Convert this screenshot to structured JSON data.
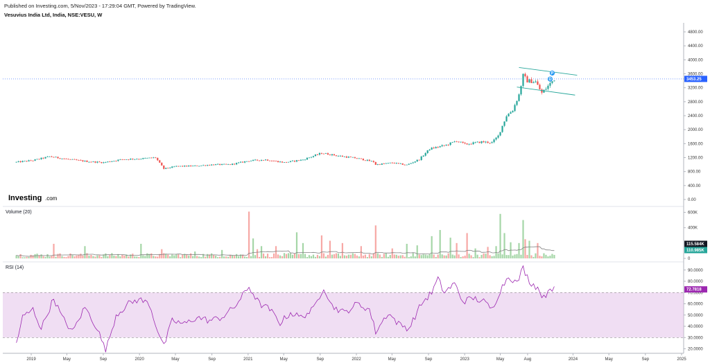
{
  "header": {
    "published": "Published on Investing.com, 5/Nov/2023 - 17:29:04 GMT, Powered by TradingView.",
    "symbol": "Vesuvius India Ltd, India, NSE:VESU, W"
  },
  "logo": {
    "text": "Investing",
    "suffix": ".com"
  },
  "chart_data": [
    {
      "type": "candlestick",
      "title": "Vesuvius India Ltd, India, NSE:VESU, W",
      "price_axis_ticks": [
        "4800.00",
        "4400.00",
        "4000.00",
        "3600.00",
        "3200.00",
        "2800.00",
        "2400.00",
        "2000.00",
        "1600.00",
        "1200.00",
        "800.00",
        "400.00",
        "0.00"
      ],
      "ylim": [
        0,
        5000
      ],
      "last_price_label": "3453.25",
      "last_price": 3453.25,
      "up_color": "#26a69a",
      "down_color": "#ef5350",
      "time_axis_labels": [
        "2019",
        "May",
        "Sep",
        "2020",
        "May",
        "Sep",
        "2021",
        "May",
        "Sep",
        "2022",
        "May",
        "Sep",
        "2023",
        "May",
        "Aug",
        "2024",
        "May",
        "Sep",
        "2025"
      ],
      "time_axis_dates": [
        "2019-01-01",
        "2019-05-01",
        "2019-09-01",
        "2020-01-01",
        "2020-05-01",
        "2020-09-01",
        "2021-01-01",
        "2021-05-01",
        "2021-09-01",
        "2022-01-01",
        "2022-05-01",
        "2022-09-01",
        "2023-01-01",
        "2023-05-01",
        "2023-08-01",
        "2024-01-01",
        "2024-05-01",
        "2024-09-01",
        "2025-01-01"
      ],
      "price_anchors": [
        [
          "2018-11-12",
          1070
        ],
        [
          "2019-01-07",
          1120
        ],
        [
          "2019-03-04",
          1230
        ],
        [
          "2019-05-06",
          1150
        ],
        [
          "2019-07-08",
          1090
        ],
        [
          "2019-09-02",
          1060
        ],
        [
          "2019-11-04",
          1150
        ],
        [
          "2020-01-06",
          1170
        ],
        [
          "2020-02-24",
          1200
        ],
        [
          "2020-03-23",
          880
        ],
        [
          "2020-05-04",
          950
        ],
        [
          "2020-07-06",
          960
        ],
        [
          "2020-09-07",
          1000
        ],
        [
          "2020-11-02",
          1000
        ],
        [
          "2021-01-04",
          1110
        ],
        [
          "2021-03-01",
          1140
        ],
        [
          "2021-05-03",
          1060
        ],
        [
          "2021-07-05",
          1140
        ],
        [
          "2021-09-06",
          1330
        ],
        [
          "2021-11-01",
          1250
        ],
        [
          "2022-01-03",
          1180
        ],
        [
          "2022-02-28",
          1080
        ],
        [
          "2022-03-07",
          1000
        ],
        [
          "2022-05-02",
          1050
        ],
        [
          "2022-06-20",
          990
        ],
        [
          "2022-08-01",
          1150
        ],
        [
          "2022-09-05",
          1450
        ],
        [
          "2022-10-31",
          1560
        ],
        [
          "2022-12-05",
          1680
        ],
        [
          "2023-01-02",
          1580
        ],
        [
          "2023-02-27",
          1650
        ],
        [
          "2023-04-03",
          1630
        ],
        [
          "2023-04-24",
          1820
        ],
        [
          "2023-05-22",
          2400
        ],
        [
          "2023-06-12",
          2560
        ],
        [
          "2023-07-03",
          3000
        ],
        [
          "2023-07-17",
          3550
        ],
        [
          "2023-07-31",
          3400
        ],
        [
          "2023-08-28",
          3370
        ],
        [
          "2023-09-18",
          3050
        ],
        [
          "2023-10-09",
          3250
        ],
        [
          "2023-10-30",
          3453
        ]
      ],
      "events": [
        {
          "date": "2023-10-23",
          "price": 3620,
          "label": "P"
        },
        {
          "date": "2023-10-16",
          "price": 3450,
          "label": "D"
        }
      ],
      "channel": {
        "upper": [
          [
            "2023-07-03",
            3780
          ],
          [
            "2024-01-15",
            3560
          ]
        ],
        "lower": [
          [
            "2023-06-26",
            3220
          ],
          [
            "2024-01-08",
            2990
          ]
        ]
      }
    },
    {
      "type": "bar",
      "title": "Volume (20)",
      "axis_ticks": [
        "600K",
        "400K",
        "0"
      ],
      "ylim": [
        0,
        650000
      ],
      "last_labels": [
        "115.584K",
        "110.985K"
      ],
      "ma_period": 20,
      "ma_color": "#808080",
      "spikes": [
        [
          "2019-03-18",
          190000
        ],
        [
          "2019-07-01",
          160000
        ],
        [
          "2020-01-06",
          190000
        ],
        [
          "2020-03-16",
          120000
        ],
        [
          "2020-07-06",
          90000
        ],
        [
          "2020-10-05",
          110000
        ],
        [
          "2021-01-04",
          610000
        ],
        [
          "2021-01-18",
          260000
        ],
        [
          "2021-02-01",
          120000
        ],
        [
          "2021-02-15",
          160000
        ],
        [
          "2021-04-05",
          160000
        ],
        [
          "2021-06-14",
          340000
        ],
        [
          "2021-07-05",
          200000
        ],
        [
          "2021-09-06",
          300000
        ],
        [
          "2021-10-04",
          230000
        ],
        [
          "2021-11-15",
          200000
        ],
        [
          "2022-01-17",
          160000
        ],
        [
          "2022-03-07",
          430000
        ],
        [
          "2022-05-02",
          130000
        ],
        [
          "2022-06-20",
          190000
        ],
        [
          "2022-07-25",
          170000
        ],
        [
          "2022-09-12",
          290000
        ],
        [
          "2022-10-10",
          370000
        ],
        [
          "2022-11-14",
          270000
        ],
        [
          "2022-12-05",
          200000
        ],
        [
          "2023-01-09",
          330000
        ],
        [
          "2023-02-06",
          130000
        ],
        [
          "2023-03-20",
          150000
        ],
        [
          "2023-04-17",
          160000
        ],
        [
          "2023-05-01",
          580000
        ],
        [
          "2023-05-15",
          330000
        ],
        [
          "2023-06-05",
          210000
        ],
        [
          "2023-07-03",
          200000
        ],
        [
          "2023-07-17",
          500000
        ],
        [
          "2023-07-24",
          250000
        ],
        [
          "2023-08-07",
          230000
        ],
        [
          "2023-09-04",
          200000
        ]
      ]
    },
    {
      "type": "line",
      "title": "RSI (14)",
      "axis_ticks": [
        "90.0000",
        "80.0000",
        "70.0000",
        "60.0000",
        "50.0000",
        "40.0000",
        "30.0000",
        "20.0000"
      ],
      "ylim": [
        16,
        96
      ],
      "overbought": 70,
      "oversold": 30,
      "last_label": "72.7818",
      "line_color": "#9c27b0",
      "band_color": "#e1bee7",
      "anchors": [
        [
          "2018-11-12",
          25
        ],
        [
          "2018-12-03",
          48
        ],
        [
          "2019-01-07",
          55
        ],
        [
          "2019-02-04",
          38
        ],
        [
          "2019-03-18",
          65
        ],
        [
          "2019-04-15",
          48
        ],
        [
          "2019-05-20",
          35
        ],
        [
          "2019-07-01",
          57
        ],
        [
          "2019-08-12",
          38
        ],
        [
          "2019-09-09",
          18
        ],
        [
          "2019-10-14",
          50
        ],
        [
          "2019-11-25",
          60
        ],
        [
          "2019-12-30",
          64
        ],
        [
          "2020-02-03",
          60
        ],
        [
          "2020-02-24",
          42
        ],
        [
          "2020-03-23",
          22
        ],
        [
          "2020-04-20",
          45
        ],
        [
          "2020-06-01",
          42
        ],
        [
          "2020-07-13",
          48
        ],
        [
          "2020-08-24",
          45
        ],
        [
          "2020-10-05",
          48
        ],
        [
          "2020-11-16",
          57
        ],
        [
          "2021-01-04",
          75
        ],
        [
          "2021-02-08",
          60
        ],
        [
          "2021-03-15",
          55
        ],
        [
          "2021-04-19",
          43
        ],
        [
          "2021-05-24",
          52
        ],
        [
          "2021-06-28",
          48
        ],
        [
          "2021-08-09",
          55
        ],
        [
          "2021-09-13",
          75
        ],
        [
          "2021-10-11",
          58
        ],
        [
          "2021-11-22",
          52
        ],
        [
          "2022-01-03",
          60
        ],
        [
          "2022-02-14",
          55
        ],
        [
          "2022-03-07",
          35
        ],
        [
          "2022-04-18",
          52
        ],
        [
          "2022-05-23",
          42
        ],
        [
          "2022-06-27",
          38
        ],
        [
          "2022-08-08",
          60
        ],
        [
          "2022-09-12",
          70
        ],
        [
          "2022-10-03",
          82
        ],
        [
          "2022-10-24",
          70
        ],
        [
          "2022-11-28",
          78
        ],
        [
          "2022-12-26",
          62
        ],
        [
          "2023-01-30",
          65
        ],
        [
          "2023-03-06",
          62
        ],
        [
          "2023-04-03",
          55
        ],
        [
          "2023-05-01",
          72
        ],
        [
          "2023-05-29",
          85
        ],
        [
          "2023-06-26",
          78
        ],
        [
          "2023-07-17",
          92
        ],
        [
          "2023-08-07",
          80
        ],
        [
          "2023-09-04",
          74
        ],
        [
          "2023-09-25",
          65
        ],
        [
          "2023-10-16",
          75
        ],
        [
          "2023-10-30",
          72.78
        ]
      ]
    }
  ]
}
